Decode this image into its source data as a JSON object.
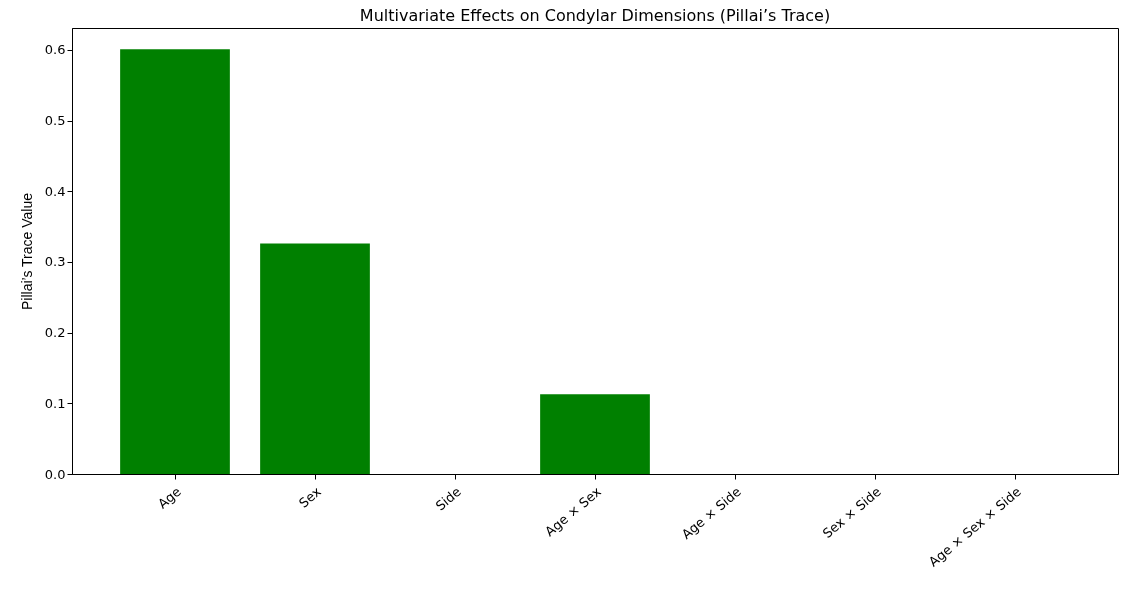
{
  "chart_data": {
    "type": "bar",
    "title": "Multivariate Effects on Condylar Dimensions (Pillai’s Trace)",
    "ylabel": "Pillai’s Trace Value",
    "categories": [
      "Age",
      "Sex",
      "Side",
      "Age × Sex",
      "Age × Side",
      "Sex × Side",
      "Age × Sex × Side"
    ],
    "values": [
      0.601,
      0.326,
      0,
      0.113,
      0,
      0,
      0
    ],
    "color": "#008000",
    "ylim": [
      0,
      0.631
    ],
    "yticks": [
      {
        "value": 0,
        "label": "0.0"
      },
      0.1,
      0.2,
      0.3,
      0.4,
      0.5,
      0.6
    ],
    "grid": false
  }
}
